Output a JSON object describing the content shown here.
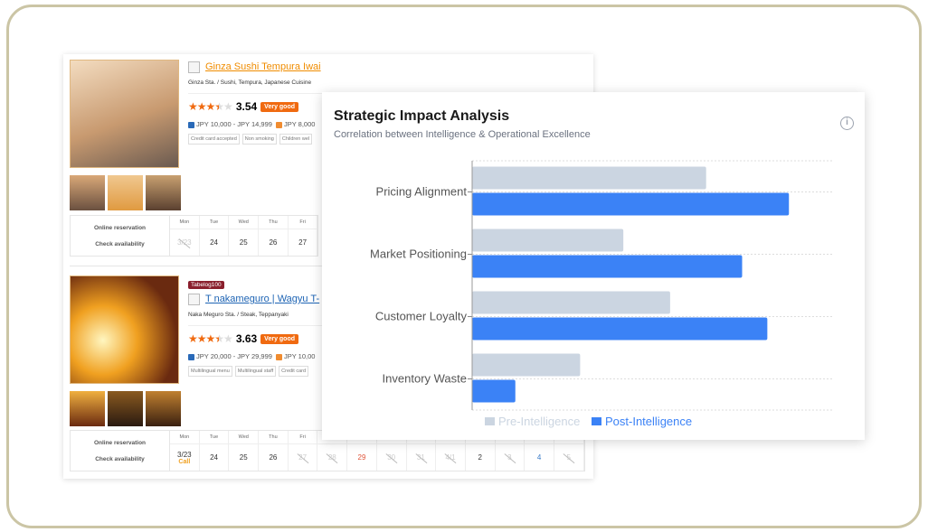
{
  "listings": [
    {
      "name": "Ginza Sushi Tempura Iwai",
      "name_color": "#f08c00",
      "area": "Ginza Sta. / Sushi, Tempura, Japanese Cuisine",
      "stars": 3.5,
      "score": "3.54",
      "badge": "Very good",
      "dinner_price": "JPY 10,000 - JPY 14,999",
      "lunch_price": "JPY 8,000",
      "tags": [
        "Credit card accepted",
        "Non smoking",
        "Children wel"
      ],
      "calendar": {
        "label_top": "Online reservation",
        "label_bottom": "Check availability",
        "days": [
          {
            "day": "Mon",
            "date": "3/23",
            "state": "unavailable"
          },
          {
            "day": "Tue",
            "date": "24"
          },
          {
            "day": "Wed",
            "date": "25"
          },
          {
            "day": "Thu",
            "date": "26"
          },
          {
            "day": "Fri",
            "date": "27"
          }
        ]
      }
    },
    {
      "award": "Tabelog100",
      "name": "T nakameguro | Wagyu T-",
      "name_color": "#1e64b4",
      "area": "Naka Meguro Sta. / Steak, Teppanyaki",
      "stars": 3.5,
      "score": "3.63",
      "badge": "Very good",
      "dinner_price": "JPY 20,000 - JPY 29,999",
      "lunch_price": "JPY 10,00",
      "tags": [
        "Multilingual menu",
        "Multilingual staff",
        "Credit card"
      ],
      "calendar": {
        "label_top": "Online reservation",
        "label_bottom": "Check availability",
        "days": [
          {
            "day": "Mon",
            "date": "3/23",
            "note": "Call"
          },
          {
            "day": "Tue",
            "date": "24"
          },
          {
            "day": "Wed",
            "date": "25"
          },
          {
            "day": "Thu",
            "date": "26"
          },
          {
            "day": "Fri",
            "date": "27",
            "state": "unavailable"
          },
          {
            "day": "",
            "date": "28",
            "state": "unavailable"
          },
          {
            "day": "",
            "date": "29",
            "state": "holiday"
          },
          {
            "day": "",
            "date": "30",
            "state": "unavailable"
          },
          {
            "day": "",
            "date": "31",
            "state": "unavailable"
          },
          {
            "day": "",
            "date": "4/1",
            "state": "unavailable"
          },
          {
            "day": "",
            "date": "2"
          },
          {
            "day": "",
            "date": "3",
            "state": "unavailable"
          },
          {
            "day": "",
            "date": "4",
            "state": "saturday"
          },
          {
            "day": "",
            "date": "5",
            "state": "unavailable"
          }
        ]
      }
    }
  ],
  "card": {
    "title": "Strategic Impact Analysis",
    "subtitle": "Correlation between Intelligence & Operational Excellence",
    "info_icon": "info-icon"
  },
  "chart_data": {
    "type": "bar",
    "orientation": "horizontal",
    "categories": [
      "Pricing Alignment",
      "Market Positioning",
      "Customer Loyalty",
      "Inventory Waste"
    ],
    "series": [
      {
        "name": "Pre-Intelligence",
        "color": "#cbd5e1",
        "values": [
          65,
          42,
          55,
          30
        ]
      },
      {
        "name": "Post-Intelligence",
        "color": "#3b82f6",
        "values": [
          88,
          75,
          82,
          12
        ]
      }
    ],
    "xlim": [
      0,
      100
    ],
    "grid": true,
    "legend": "bottom"
  }
}
